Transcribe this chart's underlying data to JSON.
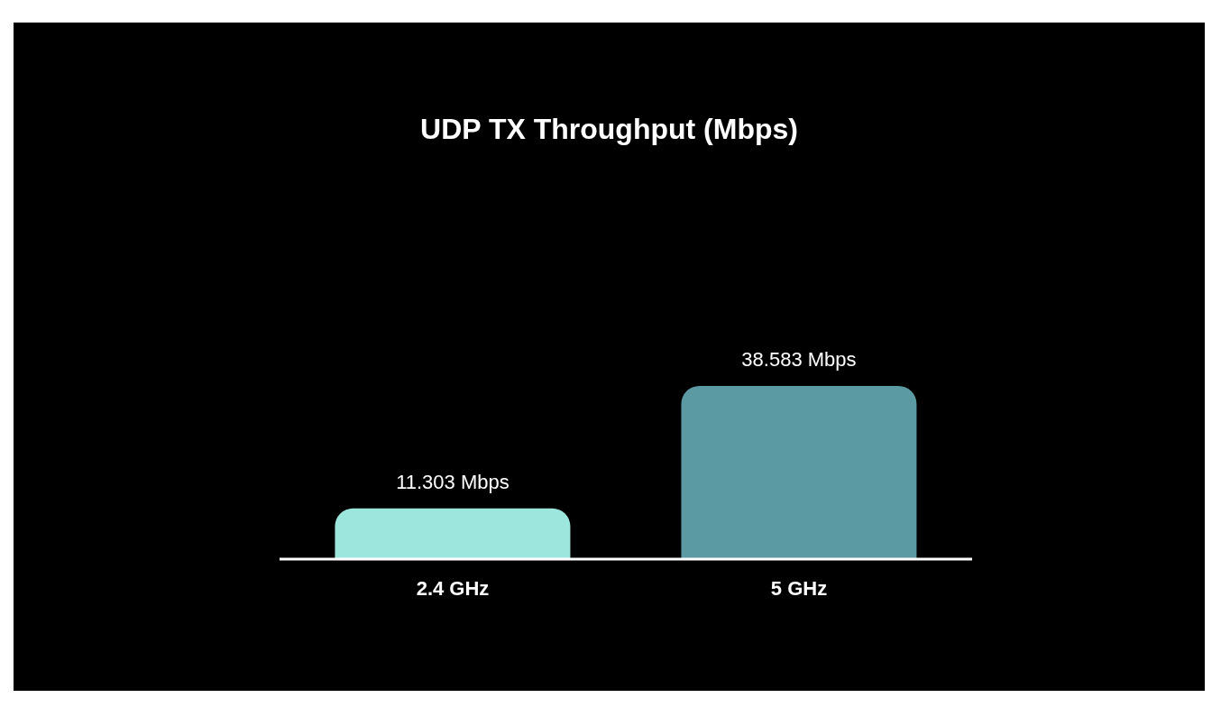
{
  "chart_data": {
    "type": "bar",
    "title": "UDP TX Throughput (Mbps)",
    "categories": [
      "2.4 GHz",
      "5 GHz"
    ],
    "values": [
      11.303,
      38.583
    ],
    "colors": [
      "#9de6de",
      "#5b9aa3"
    ],
    "value_labels": [
      "11.303 Mbps",
      "38.583 Mbps"
    ],
    "grid": false,
    "legend": false
  }
}
